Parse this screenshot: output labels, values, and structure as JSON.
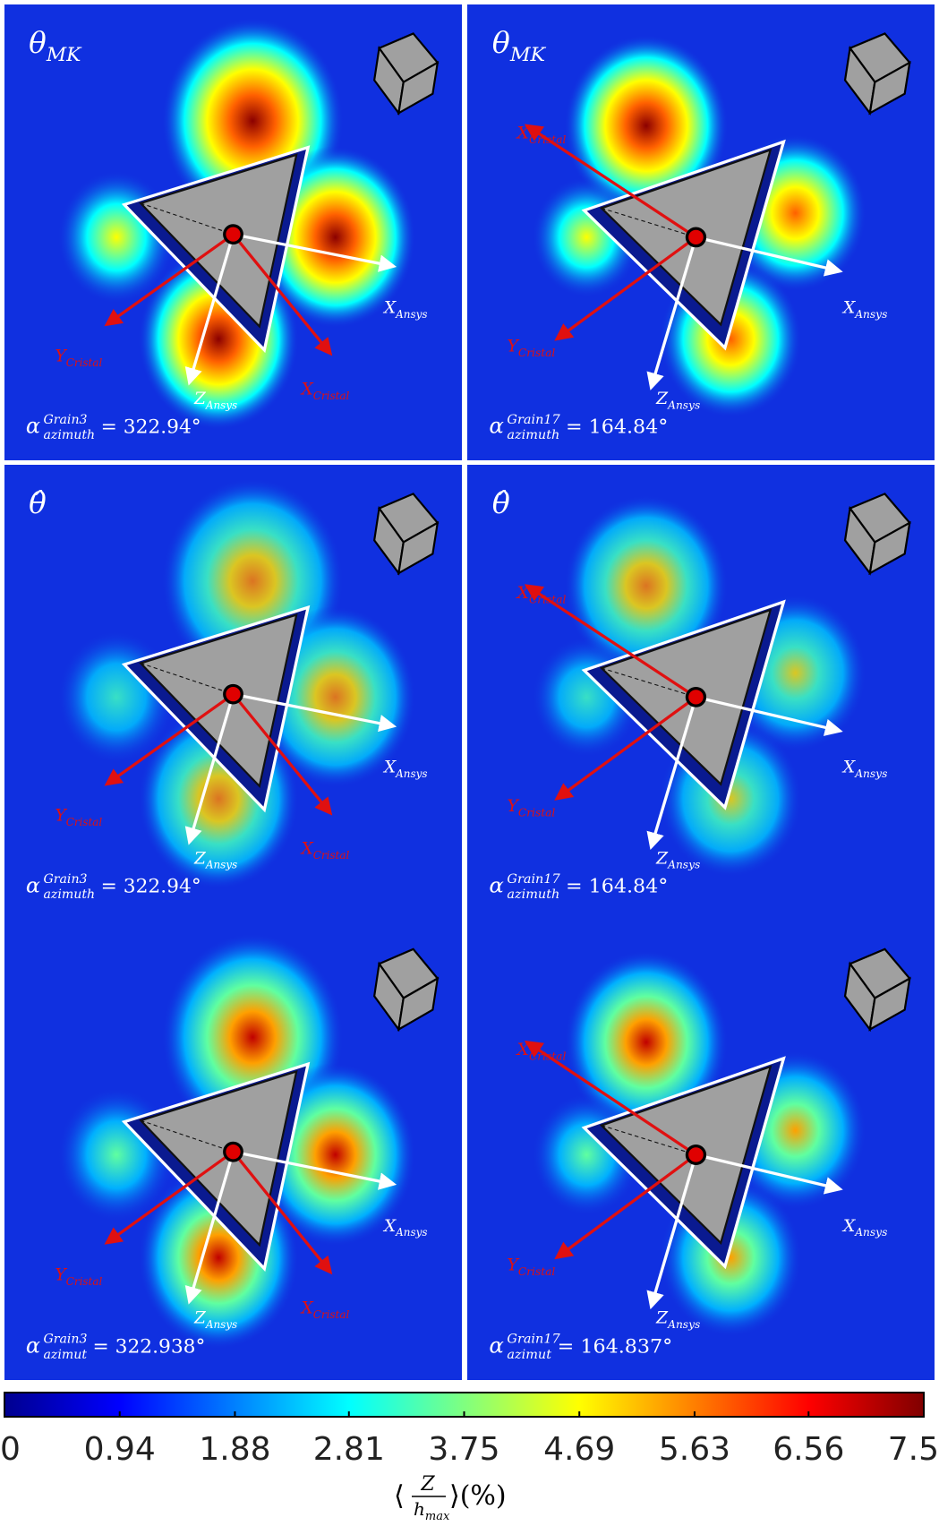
{
  "panels": [
    {
      "title": {
        "symbol": "θ",
        "sub": "MK"
      },
      "alpha": {
        "symbol": "α",
        "sup": "Grain3",
        "sub": "azimuth",
        "text": "= 322.94°"
      },
      "arrows": [
        {
          "symbol": "X",
          "sub": "Ansys"
        },
        {
          "symbol": "Z",
          "sub": "Ansys"
        },
        {
          "symbol": "Y",
          "sub": "Cristal"
        },
        {
          "symbol": "X",
          "sub": "Cristal"
        }
      ]
    },
    {
      "title": {
        "symbol": "θ",
        "sub": "MK"
      },
      "alpha": {
        "symbol": "α",
        "sup": "Grain17",
        "sub": "azimuth",
        "text": "= 164.84°"
      },
      "arrows": [
        {
          "symbol": "X",
          "sub": "Ansys"
        },
        {
          "symbol": "Z",
          "sub": "Ansys"
        },
        {
          "symbol": "Y",
          "sub": "Cristal"
        },
        {
          "symbol": "X",
          "sub": "Cristal"
        }
      ]
    },
    {
      "title": {
        "symbol": "θ̂"
      },
      "alpha": {
        "symbol": "α",
        "sup": "Grain3",
        "sub": "azimuth",
        "text": "= 322.94°"
      },
      "arrows": [
        {
          "symbol": "X",
          "sub": "Ansys"
        },
        {
          "symbol": "Z",
          "sub": "Ansys"
        },
        {
          "symbol": "Y",
          "sub": "Cristal"
        },
        {
          "symbol": "X",
          "sub": "Cristal"
        }
      ]
    },
    {
      "title": {
        "symbol": "θ̂"
      },
      "alpha": {
        "symbol": "α",
        "sup": "Grain17",
        "sub": "azimuth",
        "text": "= 164.84°"
      },
      "arrows": [
        {
          "symbol": "X",
          "sub": "Ansys"
        },
        {
          "symbol": "Z",
          "sub": "Ansys"
        },
        {
          "symbol": "Y",
          "sub": "Cristal"
        },
        {
          "symbol": "X",
          "sub": "Cristal"
        }
      ]
    },
    {
      "alpha": {
        "symbol": "α",
        "sup": "Grain3",
        "sub": "azimut",
        "text": "= 322.938°"
      },
      "arrows": [
        {
          "symbol": "X",
          "sub": "Ansys"
        },
        {
          "symbol": "Z",
          "sub": "Ansys"
        },
        {
          "symbol": "Y",
          "sub": "Cristal"
        },
        {
          "symbol": "X",
          "sub": "Cristal"
        }
      ]
    },
    {
      "alpha": {
        "symbol": "α",
        "sup": "Grain17",
        "sub": "azimut",
        "text": "= 164.837°"
      },
      "arrows": [
        {
          "symbol": "X",
          "sub": "Ansys"
        },
        {
          "symbol": "Z",
          "sub": "Ansys"
        },
        {
          "symbol": "Y",
          "sub": "Cristal"
        },
        {
          "symbol": "X",
          "sub": "Cristal"
        }
      ]
    }
  ],
  "colorbar": {
    "range": [
      0,
      7.5
    ],
    "ticks": [
      0,
      0.94,
      1.88,
      2.81,
      3.75,
      4.69,
      5.63,
      6.56,
      7.5
    ],
    "label": {
      "open": "⟨",
      "num": "Z",
      "den": "h",
      "den_sub": "max",
      "close": "⟩(%)"
    }
  }
}
